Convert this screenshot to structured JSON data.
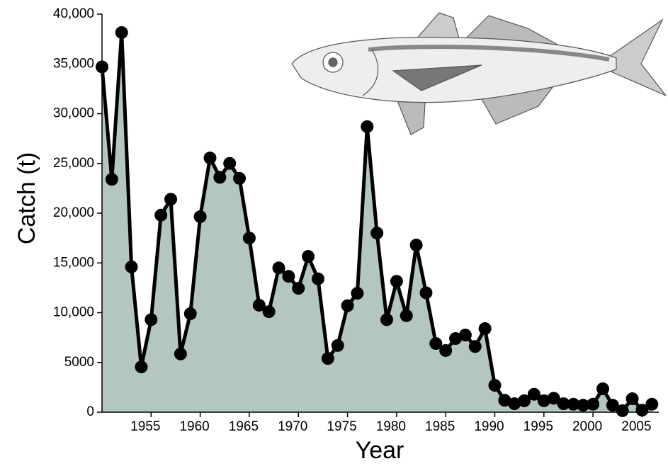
{
  "chart_data": {
    "type": "area",
    "xlabel": "Year",
    "ylabel": "Catch (t)",
    "x": [
      1950,
      1951,
      1952,
      1953,
      1954,
      1955,
      1956,
      1957,
      1958,
      1959,
      1960,
      1961,
      1962,
      1963,
      1964,
      1965,
      1966,
      1967,
      1968,
      1969,
      1970,
      1971,
      1972,
      1973,
      1974,
      1975,
      1976,
      1977,
      1978,
      1979,
      1980,
      1981,
      1982,
      1983,
      1984,
      1985,
      1986,
      1987,
      1988,
      1989,
      1990,
      1991,
      1992,
      1993,
      1994,
      1995,
      1996,
      1997,
      1998,
      1999,
      2000,
      2001,
      2002,
      2003,
      2004,
      2005,
      2006
    ],
    "values": [
      34700,
      23400,
      38150,
      14600,
      4550,
      9300,
      19800,
      21400,
      5850,
      9900,
      19650,
      25550,
      23600,
      25000,
      23500,
      17500,
      10750,
      10100,
      14500,
      13650,
      12450,
      15650,
      13400,
      5400,
      6700,
      10700,
      11950,
      28700,
      18000,
      9300,
      13150,
      9700,
      16800,
      12000,
      6900,
      6200,
      7400,
      7750,
      6600,
      8400,
      2700,
      1200,
      850,
      1150,
      1800,
      1150,
      1400,
      850,
      800,
      700,
      800,
      2350,
      700,
      150,
      1350,
      200,
      800
    ],
    "color": "#000000",
    "fill": "#b3c7bf",
    "xlim": [
      1950,
      2006.7
    ],
    "xticks": [
      1955,
      1960,
      1965,
      1970,
      1975,
      1980,
      1985,
      1990,
      1995,
      2000,
      2005
    ],
    "ylim": [
      0,
      40000
    ],
    "yticks": [
      0,
      {
        "value": 5000,
        "label": "5000"
      },
      {
        "value": 10000,
        "label": "10,000"
      },
      {
        "value": 15000,
        "label": "15,000"
      },
      {
        "value": 20000,
        "label": "20,000"
      },
      {
        "value": 25000,
        "label": "25,000"
      },
      {
        "value": 30000,
        "label": "30,000"
      },
      {
        "value": 35000,
        "label": "35,000"
      },
      {
        "value": 40000,
        "label": "40,000"
      }
    ]
  }
}
